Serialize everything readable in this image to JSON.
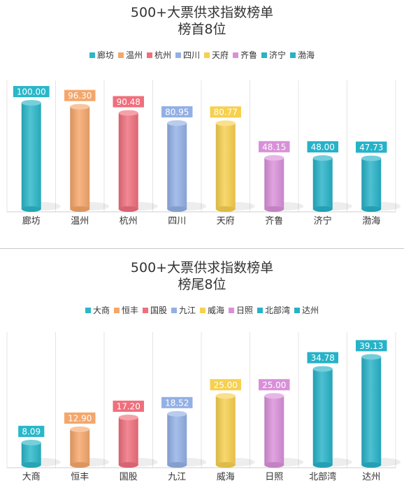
{
  "chart_data": [
    {
      "type": "bar",
      "title": "500+大票供求指数榜单",
      "subtitle": "榜首8位",
      "categories": [
        "廊坊",
        "温州",
        "杭州",
        "四川",
        "天府",
        "齐鲁",
        "济宁",
        "渤海"
      ],
      "values": [
        100.0,
        96.3,
        90.48,
        80.95,
        80.77,
        48.15,
        48.0,
        47.73
      ],
      "value_labels": [
        "100.00",
        "96.30",
        "90.48",
        "80.95",
        "80.77",
        "48.15",
        "48.00",
        "47.73"
      ],
      "colors": [
        "#2ab7c9",
        "#f5a66a",
        "#ef6f7c",
        "#93b0e5",
        "#f7d04e",
        "#d990d9",
        "#27b2c8",
        "#27b2c8"
      ],
      "ylim": [
        0,
        100
      ],
      "legend": "top",
      "grid": "vertical"
    },
    {
      "type": "bar",
      "title": "500+大票供求指数榜单",
      "subtitle": "榜尾8位",
      "categories": [
        "大商",
        "恒丰",
        "国股",
        "九江",
        "威海",
        "日照",
        "北部湾",
        "达州"
      ],
      "values": [
        8.09,
        12.9,
        17.2,
        18.52,
        25.0,
        25.0,
        34.78,
        39.13
      ],
      "value_labels": [
        "8.09",
        "12.90",
        "17.20",
        "18.52",
        "25.00",
        "25.00",
        "34.78",
        "39.13"
      ],
      "colors": [
        "#2ab7c9",
        "#f5a66a",
        "#ef6f7c",
        "#93b0e5",
        "#f7d04e",
        "#d990d9",
        "#27b2c8",
        "#27b2c8"
      ],
      "ylim": [
        0,
        40
      ],
      "legend": "top",
      "grid": "vertical"
    }
  ]
}
